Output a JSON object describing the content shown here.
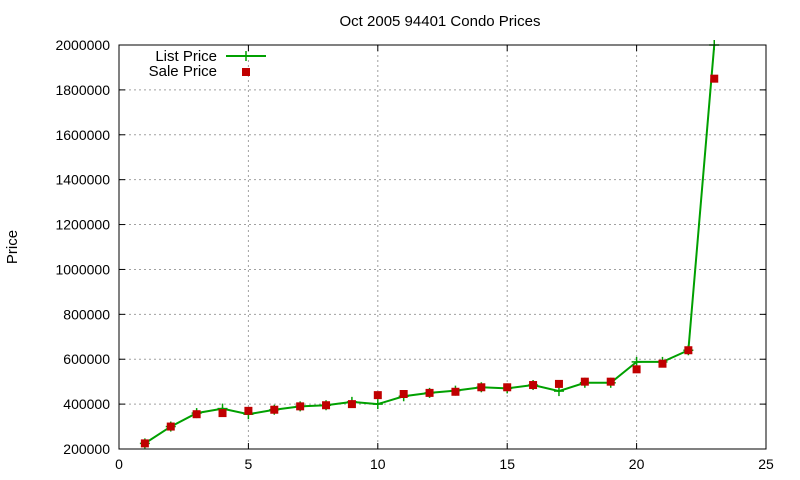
{
  "chart_data": {
    "type": "line",
    "title": "Oct 2005 94401 Condo Prices",
    "xlabel": "",
    "ylabel": "Price",
    "xlim": [
      0,
      25
    ],
    "ylim": [
      200000,
      2000000
    ],
    "x_ticks": [
      0,
      5,
      10,
      15,
      20,
      25
    ],
    "y_ticks": [
      200000,
      400000,
      600000,
      800000,
      1000000,
      1200000,
      1400000,
      1600000,
      1800000,
      2000000
    ],
    "grid": true,
    "legend_position": "top-left",
    "series": [
      {
        "name": "List Price",
        "style": "line-with-plus-markers",
        "color": "#00a000",
        "x": [
          1,
          2,
          3,
          4,
          5,
          6,
          7,
          8,
          9,
          10,
          11,
          12,
          13,
          14,
          15,
          16,
          17,
          18,
          19,
          20,
          21,
          22,
          23
        ],
        "values": [
          225000,
          300000,
          360000,
          380000,
          355000,
          375000,
          390000,
          395000,
          410000,
          400000,
          435000,
          450000,
          460000,
          475000,
          470000,
          485000,
          458000,
          495000,
          495000,
          588000,
          588000,
          640000,
          2000000
        ]
      },
      {
        "name": "Sale Price",
        "style": "square-markers",
        "color": "#c00000",
        "x": [
          1,
          2,
          3,
          4,
          5,
          6,
          7,
          8,
          9,
          10,
          11,
          12,
          13,
          14,
          15,
          16,
          17,
          18,
          19,
          20,
          21,
          22,
          23
        ],
        "values": [
          225000,
          300000,
          355000,
          360000,
          370000,
          375000,
          390000,
          395000,
          400000,
          440000,
          445000,
          450000,
          455000,
          475000,
          475000,
          485000,
          490000,
          500000,
          500000,
          555000,
          580000,
          640000,
          1850000
        ]
      }
    ]
  }
}
